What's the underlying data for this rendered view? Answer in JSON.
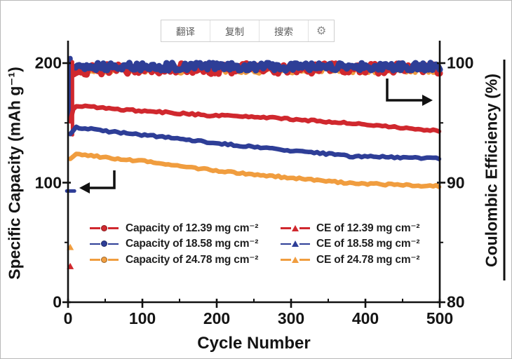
{
  "toolbar": {
    "buttons": [
      {
        "id": "translate",
        "label": "翻译"
      },
      {
        "id": "copy",
        "label": "复制"
      },
      {
        "id": "search",
        "label": "搜索"
      }
    ],
    "gear_glyph": "⚙"
  },
  "chart_data": {
    "type": "line",
    "title": "",
    "xlabel": "Cycle Number",
    "ylabel_left": "Specific Capacity (mAh g⁻¹)",
    "ylabel_right": "Coulombic Efficiency (%)",
    "xlim": [
      0,
      500
    ],
    "ylim_left": [
      0,
      200
    ],
    "ylim_right": [
      80,
      100
    ],
    "x_ticks": [
      0,
      100,
      200,
      300,
      400,
      500
    ],
    "x_minor_ticks": [
      50,
      150,
      250,
      350,
      450
    ],
    "y_ticks_left": [
      0,
      100,
      200
    ],
    "y_minor_ticks_left": [
      50,
      150
    ],
    "y_ticks_right": [
      80,
      90,
      100
    ],
    "y_minor_ticks_right": [
      85,
      95
    ],
    "grid": false,
    "legend_position": "lower-center",
    "colors": {
      "red": "#d0282e",
      "blue": "#2e3e97",
      "orange": "#f09d3f"
    },
    "series": [
      {
        "name": "Capacity of 12.39 mg cm⁻²",
        "axis": "left",
        "color": "red",
        "marker": "circle",
        "x": [
          3,
          8,
          20,
          50,
          100,
          150,
          200,
          250,
          300,
          350,
          400,
          450,
          500
        ],
        "y": [
          152,
          163,
          164,
          162,
          160,
          158,
          156,
          155,
          153,
          151,
          149,
          146,
          143
        ]
      },
      {
        "name": "Capacity of 18.58 mg cm⁻²",
        "axis": "left",
        "color": "blue",
        "marker": "circle",
        "x": [
          3,
          10,
          30,
          50,
          100,
          150,
          200,
          250,
          300,
          350,
          380,
          420,
          460,
          500
        ],
        "y": [
          140,
          146,
          145,
          143,
          140,
          137,
          133,
          130,
          127,
          124,
          122,
          121.5,
          121,
          120.5
        ]
      },
      {
        "name": "Capacity of 24.78 mg cm⁻²",
        "axis": "left",
        "color": "orange",
        "marker": "circle",
        "x": [
          3,
          10,
          30,
          50,
          100,
          150,
          200,
          250,
          300,
          350,
          400,
          450,
          500
        ],
        "y": [
          120,
          124,
          123,
          121,
          118,
          114,
          110,
          107,
          104,
          101,
          99,
          98,
          97
        ]
      },
      {
        "name": "CE of 12.39 mg cm⁻²",
        "axis": "right",
        "color": "red",
        "marker": "triangle",
        "x": [
          5,
          50,
          100,
          150,
          200,
          250,
          300,
          350,
          400,
          450,
          500
        ],
        "y": [
          99.3,
          99.5,
          99.5,
          99.6,
          99.5,
          99.6,
          99.5,
          99.6,
          99.5,
          99.6,
          99.5
        ]
      },
      {
        "name": "CE of 18.58 mg cm⁻²",
        "axis": "right",
        "color": "blue",
        "marker": "triangle",
        "x": [
          5,
          50,
          100,
          150,
          200,
          250,
          300,
          350,
          400,
          450,
          500
        ],
        "y": [
          99.6,
          99.7,
          99.7,
          99.7,
          99.7,
          99.7,
          99.7,
          99.7,
          99.7,
          99.7,
          99.7
        ]
      },
      {
        "name": "CE of 24.78 mg cm⁻²",
        "axis": "right",
        "color": "orange",
        "marker": "triangle",
        "x": [
          5,
          50,
          100,
          150,
          200,
          250,
          300,
          350,
          400,
          450,
          500
        ],
        "y": [
          99.3,
          99.4,
          99.4,
          99.4,
          99.4,
          99.4,
          99.4,
          99.4,
          99.4,
          99.4,
          99.4
        ]
      }
    ],
    "first_cycle_ce_points": [
      {
        "series": "CE of 12.39 mg cm⁻²",
        "cycle": 3,
        "value": 83.0,
        "color": "red"
      },
      {
        "series": "CE of 18.58 mg cm⁻²",
        "cycle": 3,
        "value": 89.3,
        "color": "blue"
      },
      {
        "series": "CE of 24.78 mg cm⁻²",
        "cycle": 3,
        "value": 84.6,
        "color": "orange"
      }
    ],
    "annotations": [
      {
        "type": "corner-arrow",
        "direction": "left",
        "meaning": "capacity curves read left axis"
      },
      {
        "type": "corner-arrow",
        "direction": "right",
        "meaning": "CE curves read right axis"
      }
    ]
  }
}
